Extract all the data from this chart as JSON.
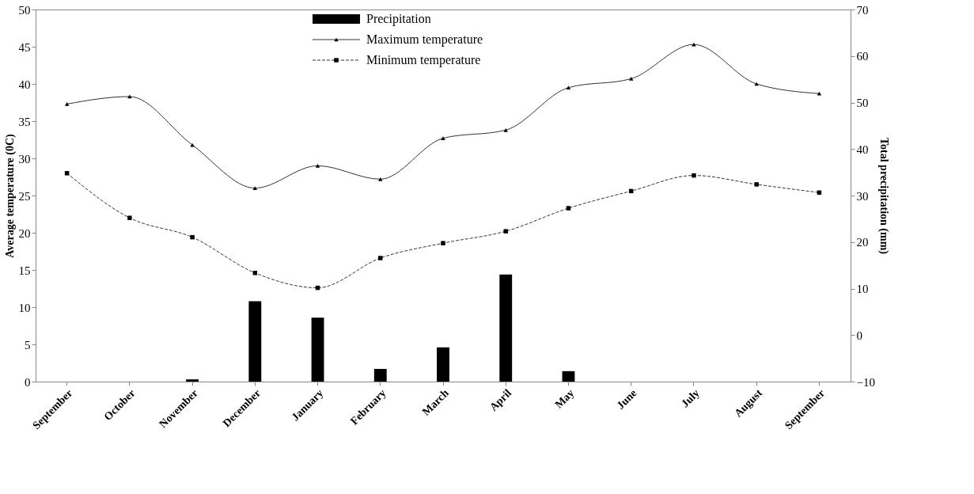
{
  "chart_data": {
    "type": "line",
    "categories": [
      "September",
      "October",
      "November",
      "December",
      "January",
      "February",
      "March",
      "April",
      "May",
      "June",
      "July",
      "August",
      "September"
    ],
    "ylabel": "Average temperature (0C)",
    "y2label": "Total precipitation (mm)",
    "ylim": [
      0,
      50
    ],
    "yticks": [
      0,
      5,
      10,
      15,
      20,
      25,
      30,
      35,
      40,
      45,
      50
    ],
    "y2lim": [
      -10,
      70
    ],
    "y2ticks": [
      -10,
      0,
      10,
      20,
      30,
      40,
      50,
      60,
      70
    ],
    "grid": false,
    "legend": "top",
    "series": [
      {
        "name": "Precipitation",
        "type": "bar",
        "color": "#000000",
        "values": [
          null,
          null,
          0.3,
          10.8,
          8.6,
          1.7,
          4.6,
          14.4,
          1.4,
          null,
          null,
          null,
          null
        ]
      },
      {
        "name": "Maximum temperature",
        "color": "#333333",
        "marker": "triangle",
        "line_style": "solid",
        "values": [
          37.3,
          38.3,
          31.8,
          26.0,
          29.0,
          27.2,
          32.7,
          33.8,
          39.5,
          40.7,
          45.3,
          40.0,
          38.7
        ]
      },
      {
        "name": "Minimum temperature",
        "color": "#333333",
        "marker": "square",
        "line_style": "dashed",
        "values": [
          28.0,
          22.0,
          19.4,
          14.6,
          12.6,
          16.6,
          18.6,
          20.2,
          23.3,
          25.6,
          27.7,
          26.5,
          25.4
        ]
      }
    ]
  }
}
